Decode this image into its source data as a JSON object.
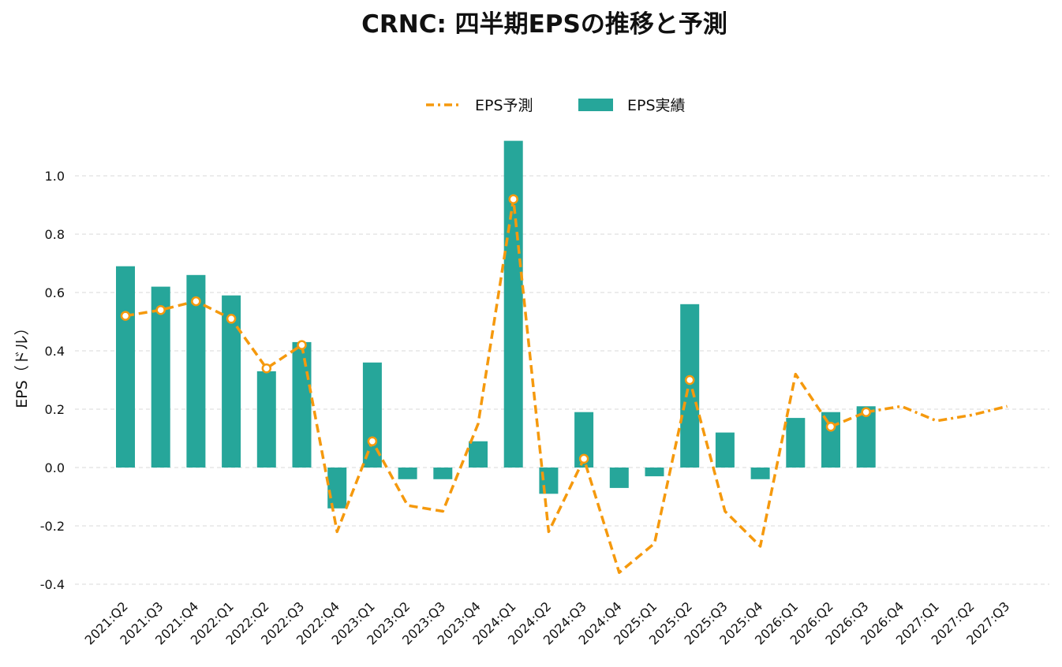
{
  "chart_data": {
    "type": "bar+line",
    "title": "CRNC: 四半期EPSの推移と予測",
    "ylabel": "EPS（ドル）",
    "xlabel": "",
    "ylim": [
      -0.4,
      1.12
    ],
    "yticks": [
      -0.4,
      -0.2,
      0.0,
      0.2,
      0.4,
      0.6,
      0.8,
      1.0
    ],
    "ytick_labels": [
      "-0.4",
      "-0.2",
      "0.0",
      "0.2",
      "0.4",
      "0.6",
      "0.8",
      "1.0"
    ],
    "grid": true,
    "legend_placement": "top-center",
    "categories": [
      "2021:Q2",
      "2021:Q3",
      "2021:Q4",
      "2022:Q1",
      "2022:Q2",
      "2022:Q3",
      "2022:Q4",
      "2023:Q1",
      "2023:Q2",
      "2023:Q3",
      "2023:Q4",
      "2024:Q1",
      "2024:Q2",
      "2024:Q3",
      "2024:Q4",
      "2025:Q1",
      "2025:Q2",
      "2025:Q3",
      "2025:Q4",
      "2026:Q1",
      "2026:Q2",
      "2026:Q3",
      "2026:Q4",
      "2027:Q1",
      "2027:Q2",
      "2027:Q3"
    ],
    "series": [
      {
        "name": "EPS予測",
        "kind": "line",
        "color": "#f5990d",
        "values": [
          0.52,
          0.54,
          0.57,
          0.51,
          0.34,
          0.42,
          -0.22,
          0.09,
          -0.13,
          -0.15,
          0.15,
          0.92,
          -0.22,
          0.03,
          -0.36,
          -0.26,
          0.3,
          -0.15,
          -0.27,
          0.32,
          0.14,
          0.19,
          0.21,
          0.16,
          0.18,
          0.21
        ]
      },
      {
        "name": "EPS実績",
        "kind": "bar",
        "color": "#26a69a",
        "values": [
          0.69,
          0.62,
          0.66,
          0.59,
          0.33,
          0.43,
          -0.14,
          0.36,
          -0.04,
          -0.04,
          0.09,
          1.12,
          -0.09,
          0.19,
          -0.07,
          -0.03,
          0.56,
          0.12,
          -0.04,
          0.17,
          0.19,
          0.21,
          null,
          null,
          null,
          null
        ]
      }
    ]
  }
}
